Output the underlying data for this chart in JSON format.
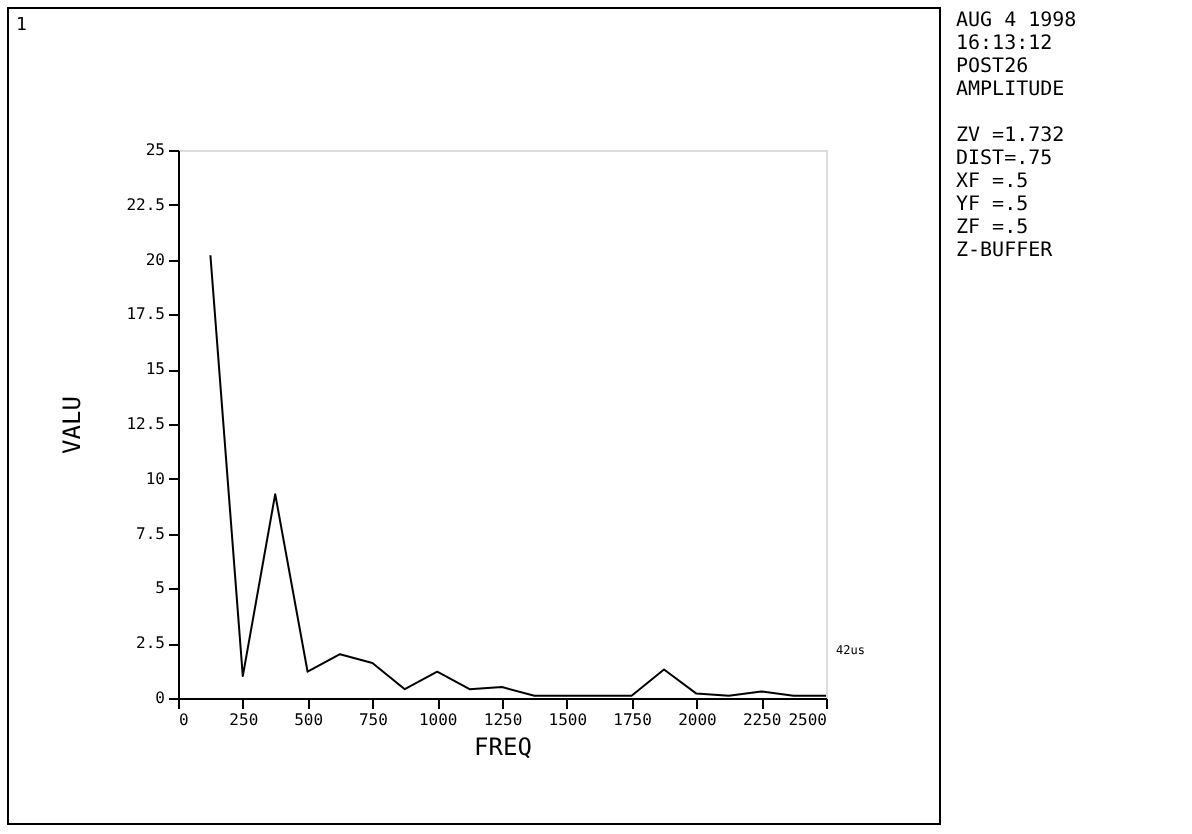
{
  "chart_data": {
    "type": "line",
    "xlabel": "FREQ",
    "ylabel": "VALU",
    "x": [
      125,
      250,
      375,
      500,
      625,
      750,
      875,
      1000,
      1125,
      1250,
      1375,
      1500,
      1625,
      1750,
      1875,
      2000,
      2125,
      2250,
      2375,
      2500
    ],
    "series": [
      {
        "color": "#000000",
        "values": [
          20.2,
          1.0,
          9.3,
          1.2,
          2.0,
          1.6,
          0.4,
          1.2,
          0.4,
          0.5,
          0.1,
          0.1,
          0.1,
          0.1,
          1.3,
          0.2,
          0.1,
          0.3,
          0.1,
          0.1
        ]
      }
    ],
    "xlim": [
      0,
      2500
    ],
    "xticks": [
      0,
      250,
      500,
      750,
      1000,
      1250,
      1500,
      1750,
      2000,
      2250,
      2500
    ],
    "ylim": [
      0,
      25
    ],
    "yticks": [
      0,
      2.5,
      5,
      7.5,
      10,
      12.5,
      15,
      17.5,
      20,
      22.5,
      25
    ],
    "grid": false,
    "marker": "none",
    "line_style": "solid",
    "annotations": [
      "1",
      "AUG  4 1998",
      "16:13:12",
      "POST26",
      "AMPLITUDE",
      "ZV  =1.732",
      "DIST=.75",
      "XF  =.5",
      "YF  =.5",
      "ZF  =.5",
      "Z-BUFFER",
      "42us"
    ]
  }
}
